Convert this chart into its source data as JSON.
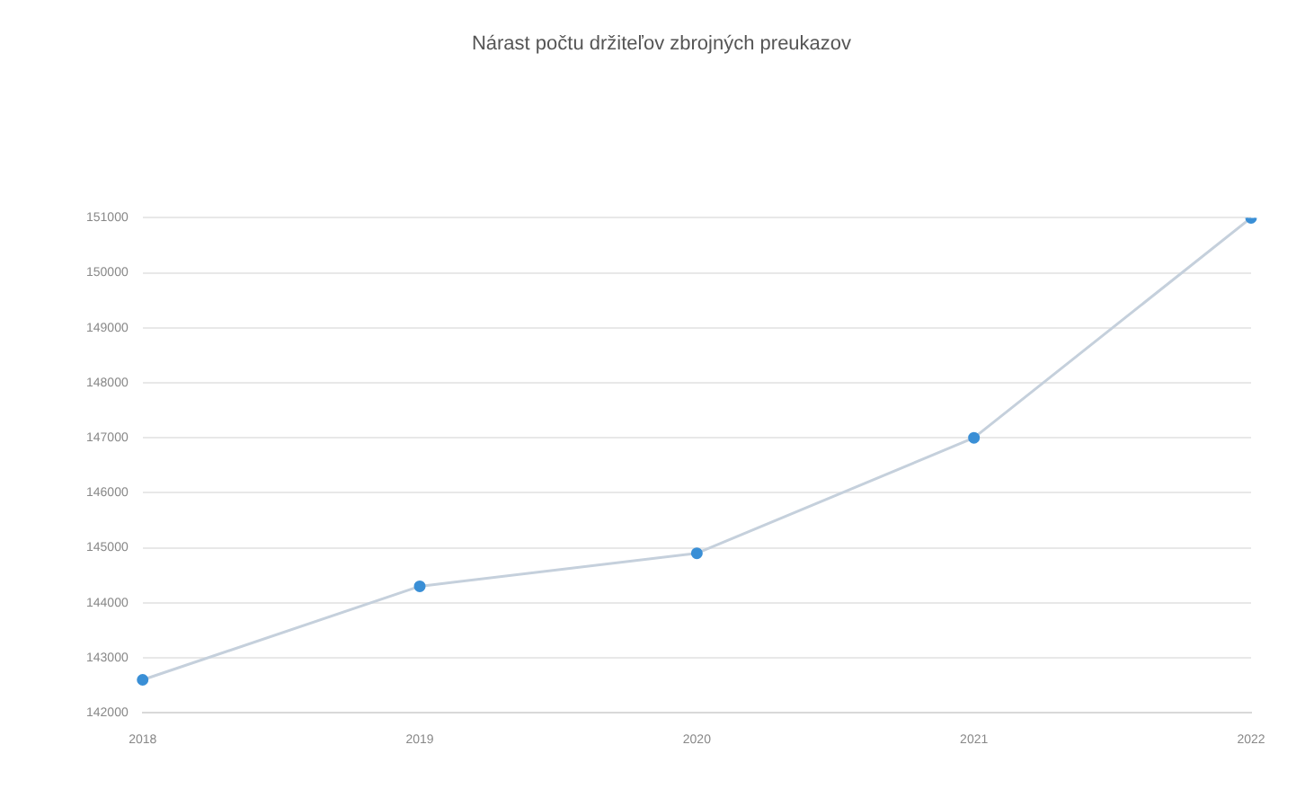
{
  "chart_data": {
    "type": "line",
    "title": "Nárast počtu držiteľov zbrojných preukazov",
    "categories": [
      "2018",
      "2019",
      "2020",
      "2021",
      "2022"
    ],
    "series": [
      {
        "color": "#c5d0dc",
        "values": [
          142600,
          144300,
          144900,
          147000,
          151000
        ]
      }
    ],
    "ylim": [
      142000,
      151000
    ],
    "yticks": [
      142000,
      143000,
      144000,
      145000,
      146000,
      147000,
      148000,
      149000,
      150000,
      151000
    ],
    "grid": "y",
    "legend": false,
    "marker": "circle",
    "line_style": "solid"
  }
}
